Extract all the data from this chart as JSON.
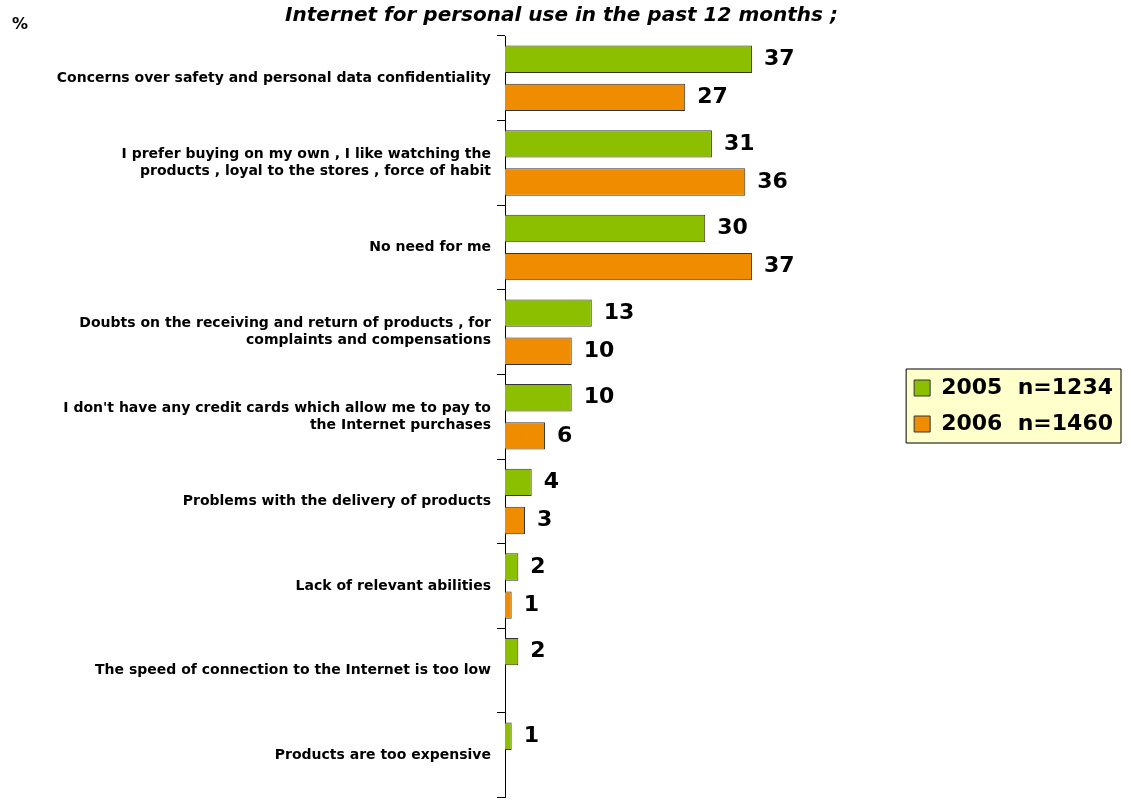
{
  "chart_data": {
    "type": "bar",
    "orientation": "horizontal",
    "title": "Internet for personal use in the past 12 months ;",
    "annotations": [
      "%"
    ],
    "categories": [
      "Concerns over safety and personal data confidentiality",
      "I prefer buying on my own , I like watching the products , loyal to the stores , force of habit",
      "No need for me",
      "Doubts on the receiving and return of products , for complaints and compensations",
      "I don't have any credit cards which allow me to pay to the Internet purchases",
      "Problems with the delivery of products",
      "Lack of relevant abilities",
      "The speed of connection to the Internet is too low",
      "Products are too expensive"
    ],
    "series": [
      {
        "name": "2005  n=1234",
        "color": "#8cbf00",
        "values": [
          37,
          31,
          30,
          13,
          10,
          4,
          2,
          2,
          1
        ]
      },
      {
        "name": "2006  n=1460",
        "color": "#f08c00",
        "values": [
          27,
          36,
          37,
          10,
          6,
          3,
          1,
          null,
          null
        ]
      }
    ],
    "data_labels": true,
    "grid": false,
    "legend": "right"
  }
}
